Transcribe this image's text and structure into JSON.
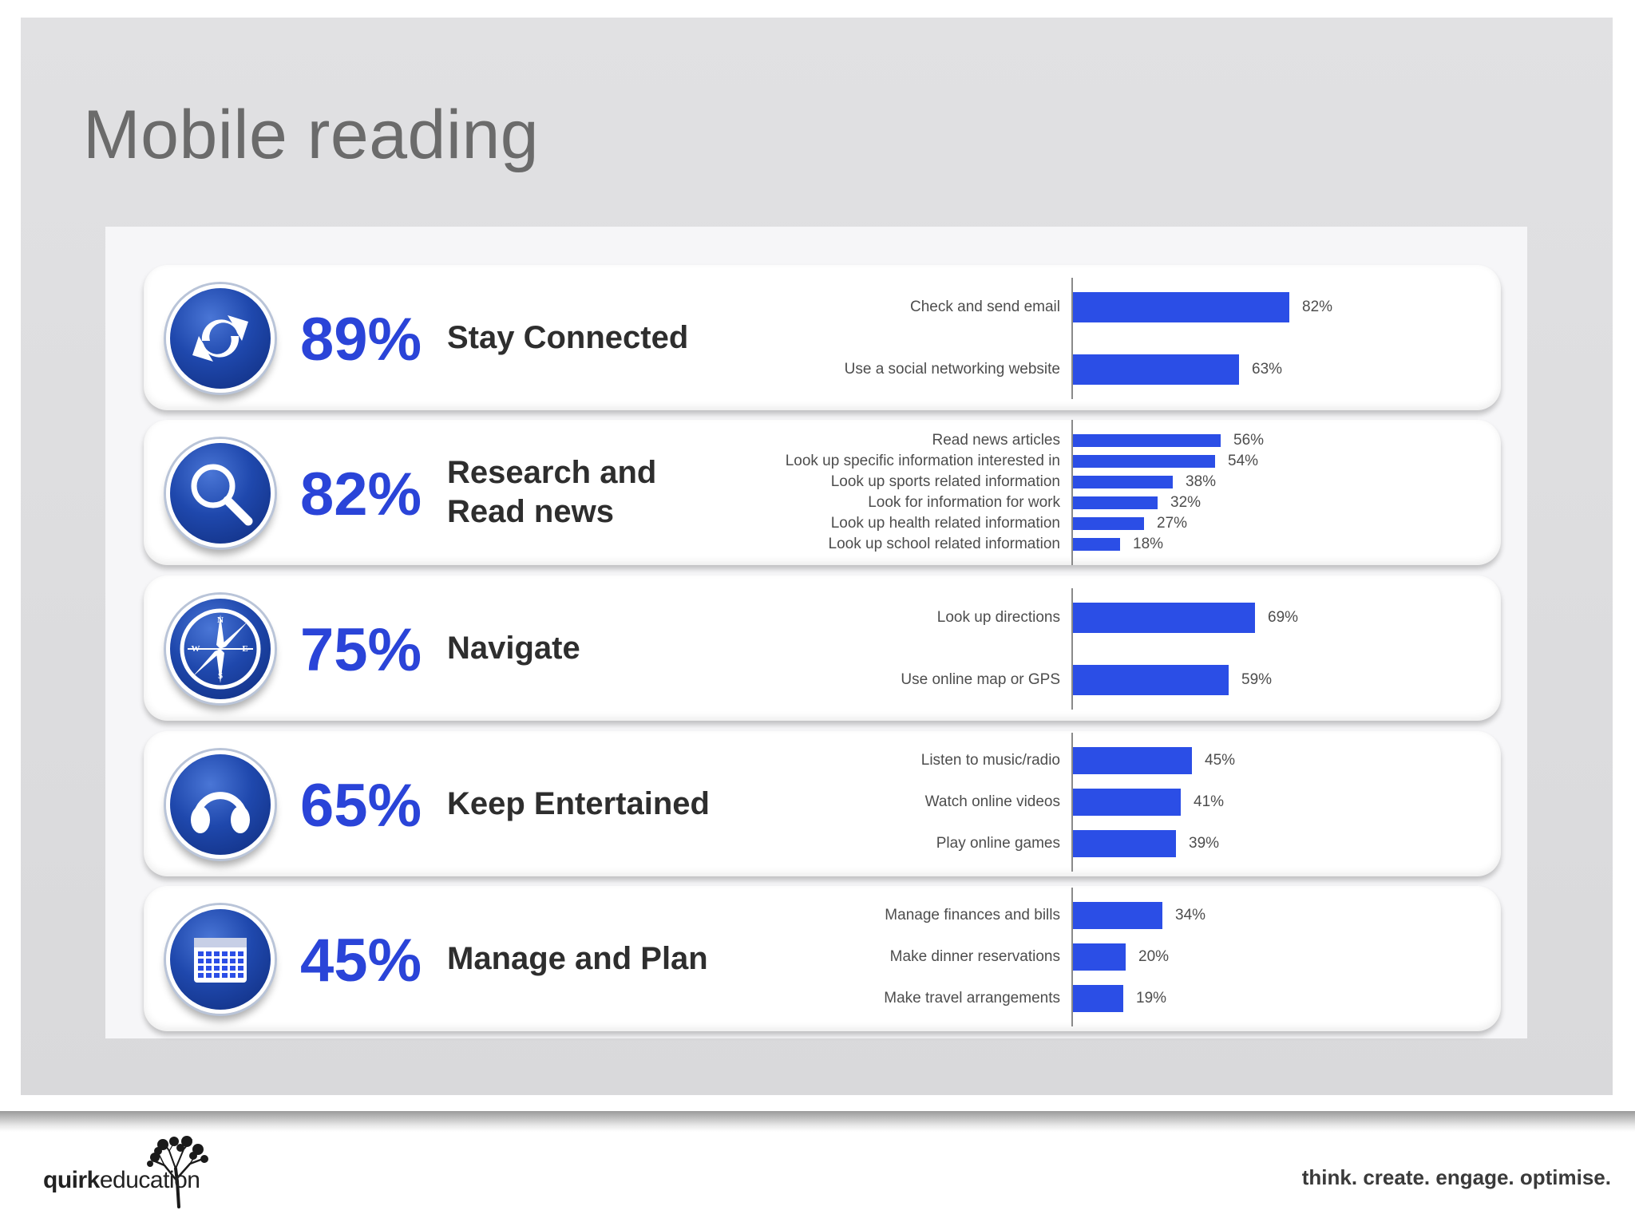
{
  "slide": {
    "title": "Mobile reading",
    "tagline": "think. create. engage. optimise.",
    "logo": {
      "bold": "quirk",
      "regular": "education"
    }
  },
  "colors": {
    "bar": "#2b4ee6",
    "percent": "#2a44d8",
    "icon_blue": "#1f48ad"
  },
  "chart_data": [
    {
      "type": "bar",
      "orientation": "horizontal",
      "title": "Stay Connected",
      "headline_percent": "89%",
      "icon": "refresh-arrows-icon",
      "categories": [
        "Check and send email",
        "Use a social networking website"
      ],
      "values": [
        82,
        63
      ],
      "value_labels": [
        "82%",
        "63%"
      ]
    },
    {
      "type": "bar",
      "orientation": "horizontal",
      "title": "Research and\nRead news",
      "headline_percent": "82%",
      "icon": "magnifier-icon",
      "categories": [
        "Read news articles",
        "Look up specific information interested in",
        "Look up sports related information",
        "Look for information for work",
        "Look up health related information",
        "Look up school related information"
      ],
      "values": [
        56,
        54,
        38,
        32,
        27,
        18
      ],
      "value_labels": [
        "56%",
        "54%",
        "38%",
        "32%",
        "27%",
        "18%"
      ]
    },
    {
      "type": "bar",
      "orientation": "horizontal",
      "title": "Navigate",
      "headline_percent": "75%",
      "icon": "compass-icon",
      "compass_letters": [
        "N",
        "E",
        "S",
        "W"
      ],
      "categories": [
        "Look up directions",
        "Use online map or GPS"
      ],
      "values": [
        69,
        59
      ],
      "value_labels": [
        "69%",
        "59%"
      ]
    },
    {
      "type": "bar",
      "orientation": "horizontal",
      "title": "Keep Entertained",
      "headline_percent": "65%",
      "icon": "headphones-icon",
      "categories": [
        "Listen to music/radio",
        "Watch online videos",
        "Play online games"
      ],
      "values": [
        45,
        41,
        39
      ],
      "value_labels": [
        "45%",
        "41%",
        "39%"
      ]
    },
    {
      "type": "bar",
      "orientation": "horizontal",
      "title": "Manage and Plan",
      "headline_percent": "45%",
      "icon": "calendar-icon",
      "categories": [
        "Manage finances and bills",
        "Make dinner reservations",
        "Make travel arrangements"
      ],
      "values": [
        34,
        20,
        19
      ],
      "value_labels": [
        "34%",
        "20%",
        "19%"
      ]
    }
  ]
}
